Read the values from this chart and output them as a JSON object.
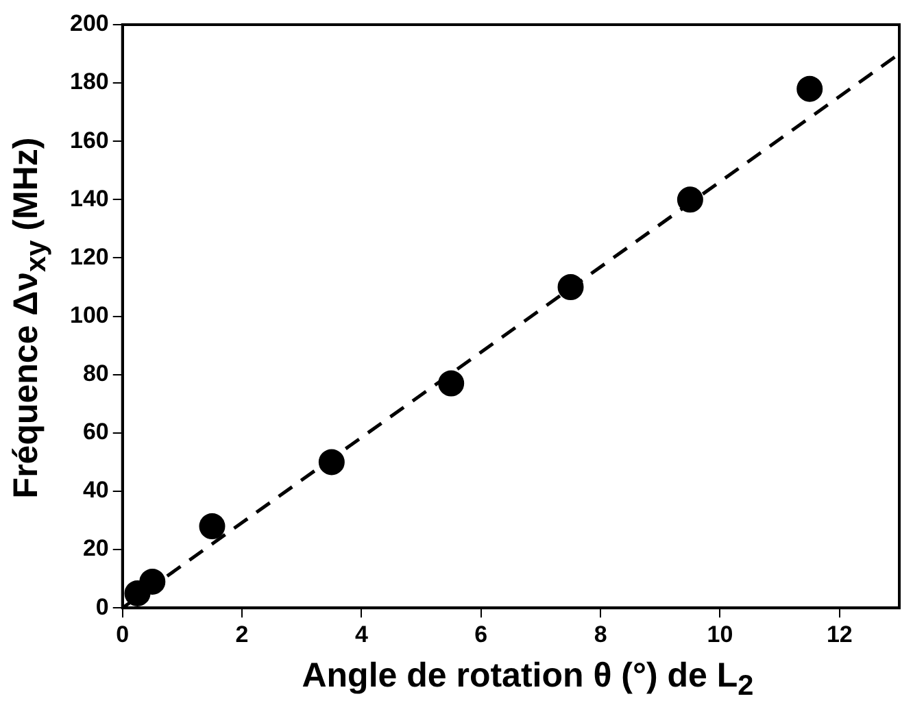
{
  "chart_data": {
    "type": "scatter",
    "xlabel": "Angle de rotation θ (°) de L$_{2}$",
    "ylabel": "Fréquence Δν$_{xy}$ (MHz)",
    "xlim": [
      0,
      13
    ],
    "xticks": [
      0,
      2,
      4,
      6,
      8,
      10,
      12
    ],
    "ylim": [
      0,
      200
    ],
    "yticks": [
      0,
      20,
      40,
      60,
      80,
      100,
      120,
      140,
      160,
      180,
      200
    ],
    "grid": false,
    "legend": false,
    "series": [
      {
        "type": "scatter",
        "color": "#000000",
        "marker": "circle",
        "x": [
          0.25,
          0.5,
          1.5,
          3.5,
          5.5,
          7.5,
          9.5,
          11.5
        ],
        "values": [
          5,
          9,
          28,
          50,
          77,
          110,
          140,
          178
        ]
      },
      {
        "type": "line",
        "color": "#000000",
        "marker": "none",
        "line_style": "dashed",
        "x": [
          0,
          13
        ],
        "values": [
          0,
          190
        ]
      }
    ]
  }
}
